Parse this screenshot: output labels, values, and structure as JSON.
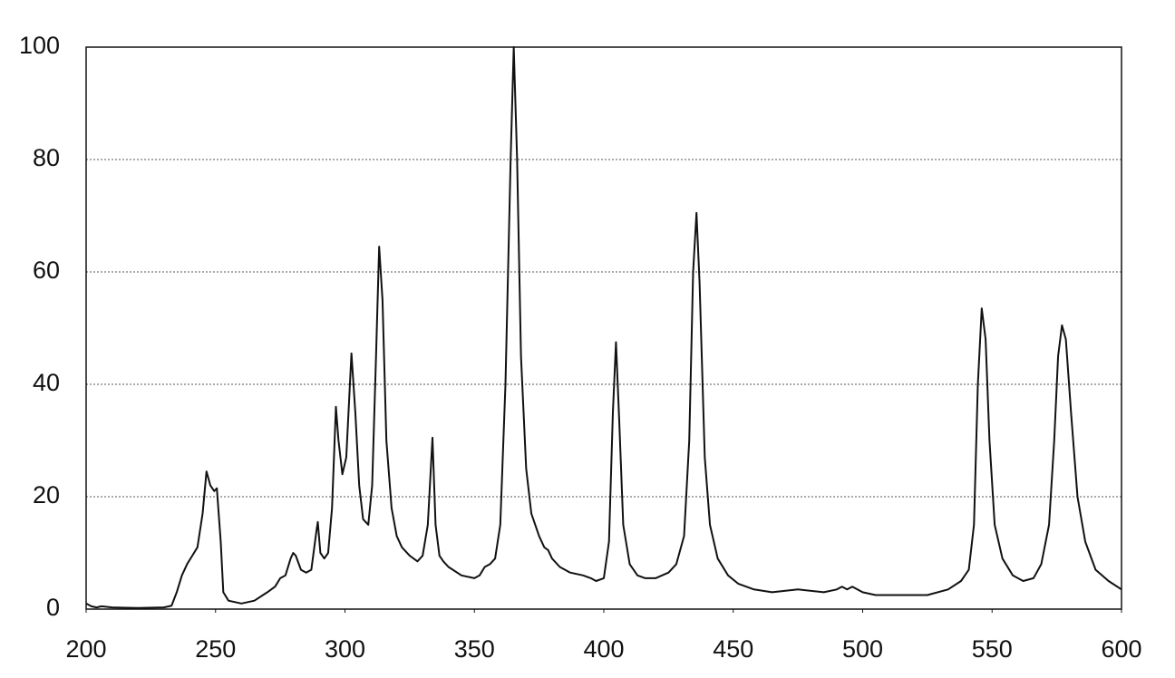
{
  "chart_data": {
    "type": "line",
    "color": "#111111",
    "grid": true,
    "xlim": [
      200,
      600
    ],
    "xticks": [
      200,
      250,
      300,
      350,
      400,
      450,
      500,
      550,
      600
    ],
    "ylim": [
      0,
      100
    ],
    "yticks": [
      0,
      20,
      40,
      60,
      80,
      100
    ],
    "x": [
      200,
      202,
      204,
      206,
      210,
      220,
      230,
      233,
      235,
      237,
      239,
      241,
      243,
      245,
      246.5,
      248,
      249.5,
      250.5,
      252,
      253,
      255,
      260,
      265,
      270,
      273,
      275,
      277,
      279,
      280,
      281,
      283,
      285,
      287,
      289,
      289.5,
      290.5,
      292,
      293.5,
      295,
      296.5,
      297.5,
      299,
      300.5,
      302.5,
      304,
      305.5,
      307,
      309,
      310.5,
      312,
      313.2,
      314.5,
      316,
      318,
      320,
      322,
      325,
      328,
      330,
      332,
      333.8,
      335,
      336.5,
      338,
      340,
      345,
      350,
      352,
      354,
      356,
      358,
      360,
      362,
      364,
      365.2,
      366.5,
      368,
      370,
      372,
      375,
      377,
      378.5,
      380,
      383,
      387,
      392,
      395,
      397,
      400,
      402,
      403.5,
      404.7,
      406,
      407.5,
      410,
      413,
      416,
      420,
      425,
      428,
      431,
      433,
      434.5,
      435.8,
      437,
      439,
      441,
      444,
      448,
      452,
      458,
      465,
      475,
      485,
      490,
      492,
      494,
      496,
      500,
      505,
      515,
      525,
      533,
      538,
      541,
      543,
      544.5,
      546,
      547.5,
      549,
      551,
      554,
      558,
      562,
      566,
      569,
      572,
      574,
      575.5,
      577,
      578.5,
      580.5,
      583,
      586,
      590,
      595,
      600
    ],
    "values": [
      1,
      0.5,
      0.3,
      0.5,
      0.3,
      0.2,
      0.3,
      0.6,
      3,
      6,
      8,
      9.5,
      11,
      17,
      24.5,
      22,
      21,
      21.5,
      12,
      3,
      1.5,
      1,
      1.5,
      3,
      4,
      5.5,
      6,
      9,
      10,
      9.5,
      7,
      6.5,
      7,
      14,
      15.5,
      10,
      9,
      10,
      18,
      36,
      30,
      24,
      27,
      45.5,
      35,
      22,
      16,
      15,
      22,
      45,
      64.5,
      55,
      30,
      18,
      13,
      11,
      9.5,
      8.5,
      9.5,
      15,
      30.5,
      15,
      9.5,
      8.5,
      7.5,
      6,
      5.5,
      6,
      7.5,
      8,
      9,
      15,
      40,
      80,
      100,
      80,
      45,
      25,
      17,
      13,
      11,
      10.5,
      9,
      7.5,
      6.5,
      6,
      5.5,
      5,
      5.5,
      12,
      35,
      47.5,
      33,
      15,
      8,
      6,
      5.5,
      5.5,
      6.5,
      8,
      13,
      30,
      60,
      70.5,
      58,
      27,
      15,
      9,
      6,
      4.5,
      3.5,
      3,
      3.5,
      3,
      3.5,
      4,
      3.5,
      4,
      3,
      2.5,
      2.5,
      2.5,
      3.5,
      5,
      7,
      15,
      40,
      53.5,
      48,
      30,
      15,
      9,
      6,
      5,
      5.5,
      8,
      15,
      30,
      45,
      50.5,
      48,
      35,
      20,
      12,
      7,
      5,
      3.5
    ]
  }
}
